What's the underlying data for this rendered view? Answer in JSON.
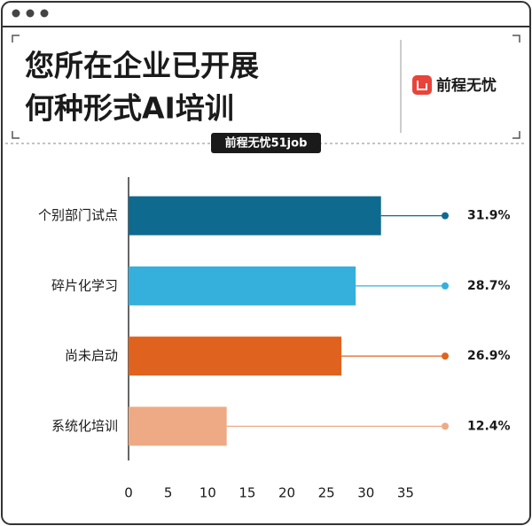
{
  "chart_data": {
    "type": "bar",
    "orientation": "horizontal",
    "title": [
      "您所在企业已开展",
      "何种形式AI培训"
    ],
    "brand": "前程无忧",
    "source": "前程无忧51job",
    "categories": [
      "个别部门试点",
      "碎片化学习",
      "尚未启动",
      "系统化培训"
    ],
    "values": [
      31.9,
      28.7,
      26.9,
      12.4
    ],
    "value_labels": [
      "31.9%",
      "28.7%",
      "26.9%",
      "12.4%"
    ],
    "colors": [
      "#0f6a8f",
      "#35b0dc",
      "#e0621f",
      "#eeaa85"
    ],
    "xlim": [
      0,
      40
    ],
    "xticks": [
      0,
      5,
      10,
      15,
      20,
      25,
      30,
      35
    ]
  }
}
